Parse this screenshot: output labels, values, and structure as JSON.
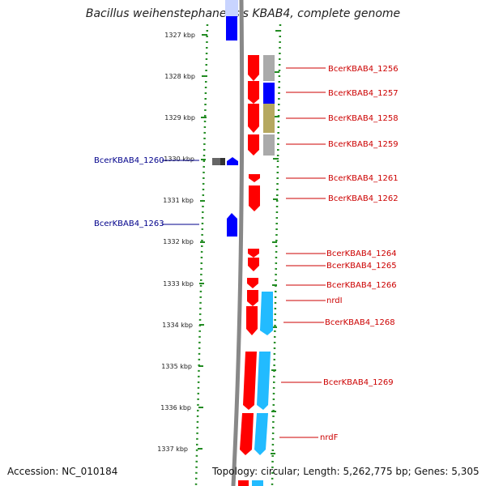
{
  "title": "Bacillus weihenstephanensis KBAB4, complete genome",
  "footer": {
    "accession": "Accession: NC_010184",
    "topology": "Topology: circular; Length: 5,262,775 bp; Genes: 5,305"
  },
  "ruler": {
    "ticks": [
      "1327 kbp",
      "1328 kbp",
      "1329 kbp",
      "1330 kbp",
      "1331 kbp",
      "1332 kbp",
      "1333 kbp",
      "1334 kbp",
      "1335 kbp",
      "1336 kbp",
      "1337 kbp"
    ]
  },
  "colors": {
    "forward": "#ff0000",
    "reverse": "#0000ff",
    "cyan": "#22bbff",
    "grey": "#aaaaaa",
    "olive": "#b5a860",
    "ruler_green": "#228b22",
    "backbone": "#888888"
  },
  "genes": {
    "right": [
      "BcerKBAB4_1256",
      "BcerKBAB4_1257",
      "BcerKBAB4_1258",
      "BcerKBAB4_1259",
      "BcerKBAB4_1261",
      "BcerKBAB4_1262",
      "BcerKBAB4_1264",
      "BcerKBAB4_1265",
      "BcerKBAB4_1266",
      "nrdI",
      "BcerKBAB4_1268",
      "BcerKBAB4_1269",
      "nrdF"
    ],
    "left": [
      "BcerKBAB4_1260",
      "BcerKBAB4_1263"
    ]
  }
}
